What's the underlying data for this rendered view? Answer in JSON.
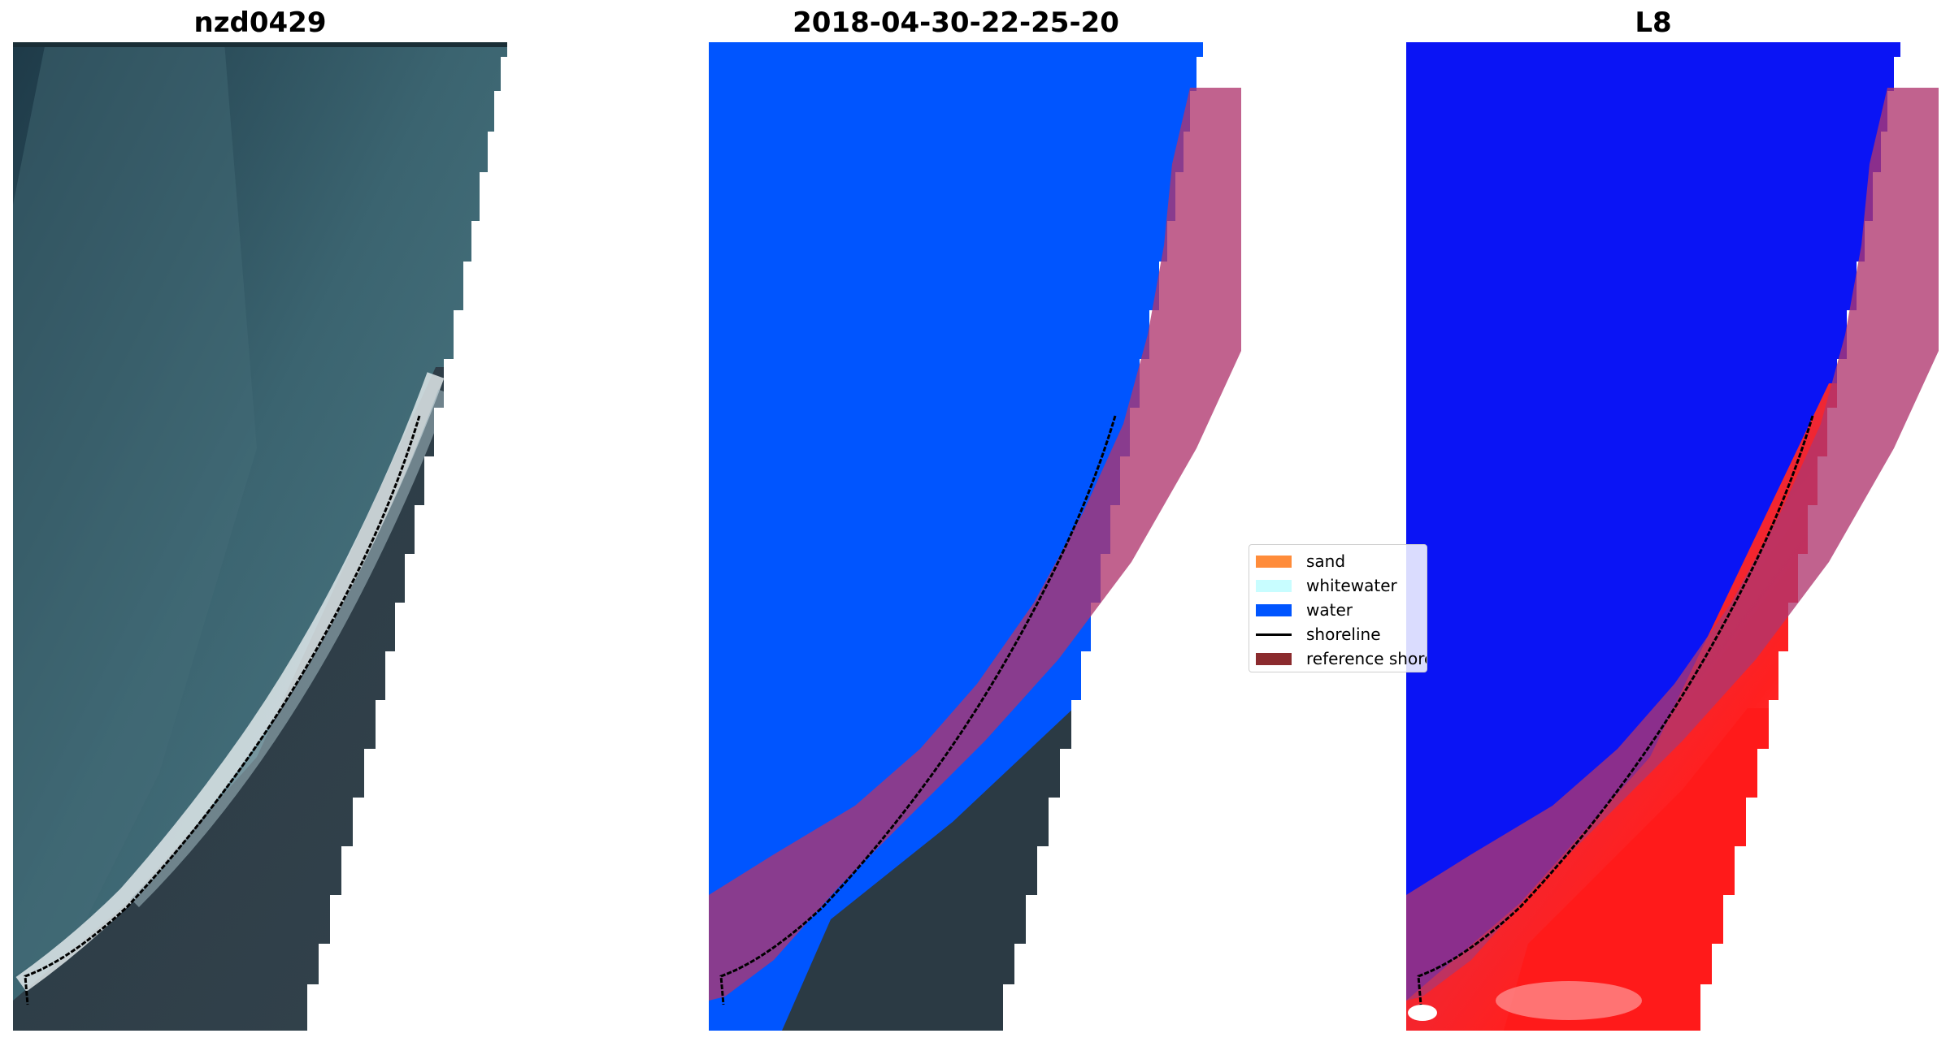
{
  "panels": [
    {
      "title": "nzd0429"
    },
    {
      "title": "2018-04-30-22-25-20"
    },
    {
      "title": "L8"
    }
  ],
  "legend": {
    "items": [
      {
        "label": "sand",
        "color": "#ff8c3a"
      },
      {
        "label": "whitewater",
        "color": "#c8fdff"
      },
      {
        "label": "water",
        "color": "#0055ff"
      },
      {
        "label": "shoreline",
        "color": "#000000"
      },
      {
        "label": "reference shoreline",
        "color": "#8b2b2e"
      }
    ]
  },
  "colors": {
    "rgb_water": "#2e4a55",
    "rgb_land": "#2b3a44",
    "classified_water": "#0055ff",
    "mndwi_water": "#0a14f5",
    "mndwi_land": "#ff1a1a",
    "reference_buffer": "#b0366e",
    "surf": "#e8eef0"
  }
}
